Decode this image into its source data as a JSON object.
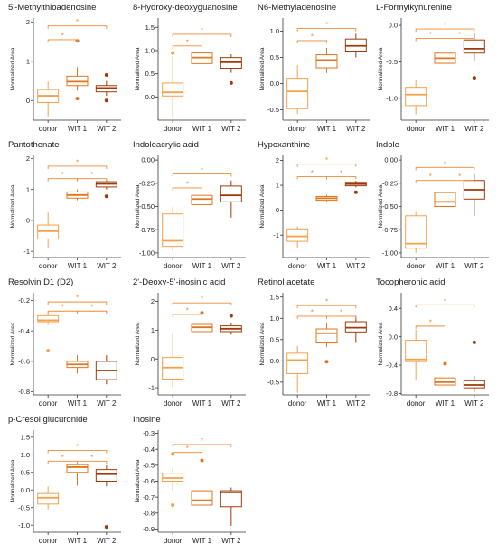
{
  "colors": {
    "donor": "#f5a04a",
    "wit1": "#e0751f",
    "wit2": "#9e3a0a",
    "sig": "#f08a30"
  },
  "chart_data": [
    {
      "type": "box",
      "title": "5'-Methylthioadenosine",
      "ylabel": "Normalized Area",
      "ylim": [
        -0.5,
        2.1
      ],
      "yticks": [
        0,
        1,
        2
      ],
      "categories": [
        "donor",
        "WIT 1",
        "WIT 2"
      ],
      "boxes": [
        {
          "min": -0.42,
          "q1": -0.05,
          "median": 0.12,
          "q3": 0.28,
          "max": 0.48,
          "outliers": []
        },
        {
          "min": 0.25,
          "q1": 0.38,
          "median": 0.48,
          "q3": 0.62,
          "max": 0.85,
          "outliers": [
            1.52,
            0.05
          ]
        },
        {
          "min": 0.12,
          "q1": 0.22,
          "median": 0.32,
          "q3": 0.38,
          "max": 0.5,
          "outliers": [
            0.65,
            0.0
          ]
        }
      ],
      "significance": [
        {
          "from": 0,
          "to": 1,
          "label": "*",
          "y": 1.55
        },
        {
          "from": 0,
          "to": 2,
          "label": "*",
          "y": 1.9
        }
      ]
    },
    {
      "type": "box",
      "title": "8-Hydroxy-deoxyguanosine",
      "ylabel": "Normalized Area",
      "ylim": [
        -0.5,
        1.7
      ],
      "yticks": [
        0,
        0.5,
        1,
        1.5
      ],
      "tick_labels": [
        "0.0",
        "0.5",
        "1.0",
        "1.5"
      ],
      "categories": [
        "donor",
        "WIT 1",
        "WIT 2"
      ],
      "boxes": [
        {
          "min": -0.45,
          "q1": 0.02,
          "median": 0.1,
          "q3": 0.3,
          "max": 0.95,
          "outliers": [
            0.95
          ]
        },
        {
          "min": 0.5,
          "q1": 0.72,
          "median": 0.85,
          "q3": 0.95,
          "max": 1.02,
          "outliers": []
        },
        {
          "min": 0.52,
          "q1": 0.62,
          "median": 0.75,
          "q3": 0.85,
          "max": 0.92,
          "outliers": [
            0.3
          ]
        }
      ],
      "significance": [
        {
          "from": 0,
          "to": 1,
          "label": "*",
          "y": 1.1
        },
        {
          "from": 0,
          "to": 2,
          "label": "*",
          "y": 1.35
        }
      ]
    },
    {
      "type": "box",
      "title": "N6-Methyladenosine",
      "ylabel": "Normalized Area",
      "ylim": [
        -0.7,
        1.25
      ],
      "yticks": [
        -0.5,
        0,
        0.5,
        1
      ],
      "tick_labels": [
        "-0.5",
        "0.0",
        "0.5",
        "1.0"
      ],
      "categories": [
        "donor",
        "WIT 1",
        "WIT 2"
      ],
      "boxes": [
        {
          "min": -0.58,
          "q1": -0.48,
          "median": -0.15,
          "q3": 0.1,
          "max": 0.35,
          "outliers": []
        },
        {
          "min": 0.2,
          "q1": 0.3,
          "median": 0.45,
          "q3": 0.55,
          "max": 0.68,
          "outliers": []
        },
        {
          "min": 0.5,
          "q1": 0.62,
          "median": 0.72,
          "q3": 0.85,
          "max": 0.95,
          "outliers": []
        }
      ],
      "significance": [
        {
          "from": 0,
          "to": 1,
          "label": "*",
          "y": 0.82
        },
        {
          "from": 0,
          "to": 2,
          "label": "*",
          "y": 1.05
        }
      ]
    },
    {
      "type": "box",
      "title": "L-Formylkynurenine",
      "ylabel": "Normalized Area",
      "ylim": [
        -1.3,
        0.1
      ],
      "yticks": [
        -1,
        -0.5,
        0
      ],
      "tick_labels": [
        "-1.0",
        "-0.5",
        "0.0"
      ],
      "categories": [
        "donor",
        "WIT 1",
        "WIT 2"
      ],
      "boxes": [
        {
          "min": -1.22,
          "q1": -1.1,
          "median": -0.95,
          "q3": -0.85,
          "max": -0.75,
          "outliers": []
        },
        {
          "min": -0.58,
          "q1": -0.52,
          "median": -0.45,
          "q3": -0.38,
          "max": -0.32,
          "outliers": []
        },
        {
          "min": -0.48,
          "q1": -0.38,
          "median": -0.32,
          "q3": -0.2,
          "max": -0.1,
          "outliers": [
            -0.72
          ]
        }
      ],
      "significance": [
        {
          "from": 0,
          "to": 1,
          "label": "*",
          "y": -0.18
        },
        {
          "from": 0,
          "to": 2,
          "label": "*",
          "y": -0.05
        },
        {
          "from": 1,
          "to": 2,
          "label": "*",
          "y": -0.18
        }
      ]
    },
    {
      "type": "box",
      "title": "Pantothenate",
      "ylabel": "Normalized Area",
      "ylim": [
        -1.2,
        2.1
      ],
      "yticks": [
        -1,
        0,
        1,
        2
      ],
      "categories": [
        "donor",
        "WIT 1",
        "WIT 2"
      ],
      "boxes": [
        {
          "min": -0.9,
          "q1": -0.6,
          "median": -0.35,
          "q3": -0.15,
          "max": 0.25,
          "outliers": []
        },
        {
          "min": 0.65,
          "q1": 0.72,
          "median": 0.82,
          "q3": 0.92,
          "max": 1.0,
          "outliers": []
        },
        {
          "min": 1.0,
          "q1": 1.08,
          "median": 1.18,
          "q3": 1.25,
          "max": 1.3,
          "outliers": [
            0.78
          ]
        }
      ],
      "significance": [
        {
          "from": 0,
          "to": 1,
          "label": "*",
          "y": 1.35
        },
        {
          "from": 0,
          "to": 2,
          "label": "*",
          "y": 1.75
        },
        {
          "from": 1,
          "to": 2,
          "label": "*",
          "y": 1.35
        }
      ]
    },
    {
      "type": "box",
      "title": "Indoleacrylic acid",
      "ylabel": "Normalized Area",
      "ylim": [
        -1.05,
        0.05
      ],
      "yticks": [
        -1,
        -0.75,
        -0.5,
        -0.25,
        0
      ],
      "tick_labels": [
        "-1.00",
        "-0.75",
        "-0.50",
        "-0.25",
        "0.00"
      ],
      "categories": [
        "donor",
        "WIT 1",
        "WIT 2"
      ],
      "boxes": [
        {
          "min": -0.98,
          "q1": -0.93,
          "median": -0.87,
          "q3": -0.58,
          "max": -0.5,
          "outliers": []
        },
        {
          "min": -0.55,
          "q1": -0.48,
          "median": -0.42,
          "q3": -0.38,
          "max": -0.3,
          "outliers": []
        },
        {
          "min": -0.62,
          "q1": -0.45,
          "median": -0.38,
          "q3": -0.28,
          "max": -0.22,
          "outliers": []
        }
      ],
      "significance": [
        {
          "from": 0,
          "to": 1,
          "label": "*",
          "y": -0.3
        },
        {
          "from": 0,
          "to": 2,
          "label": "*",
          "y": -0.15
        }
      ]
    },
    {
      "type": "box",
      "title": "Hypoxanthine",
      "ylabel": "Normalized Area",
      "ylim": [
        -1.9,
        2.2
      ],
      "yticks": [
        -1,
        0,
        1,
        2
      ],
      "categories": [
        "donor",
        "WIT 1",
        "WIT 2"
      ],
      "boxes": [
        {
          "min": -1.5,
          "q1": -1.25,
          "median": -1.05,
          "q3": -0.75,
          "max": -0.65,
          "outliers": []
        },
        {
          "min": 0.35,
          "q1": 0.4,
          "median": 0.48,
          "q3": 0.55,
          "max": 0.62,
          "outliers": []
        },
        {
          "min": 0.92,
          "q1": 0.98,
          "median": 1.05,
          "q3": 1.12,
          "max": 1.18,
          "outliers": [
            0.72
          ]
        }
      ],
      "significance": [
        {
          "from": 0,
          "to": 1,
          "label": "*",
          "y": 1.35
        },
        {
          "from": 0,
          "to": 2,
          "label": "*",
          "y": 1.85
        },
        {
          "from": 1,
          "to": 2,
          "label": "*",
          "y": 1.35
        }
      ]
    },
    {
      "type": "box",
      "title": "Indole",
      "ylabel": "Normalized Area",
      "ylim": [
        -1.05,
        0.05
      ],
      "yticks": [
        -1,
        -0.75,
        -0.5,
        -0.25,
        0
      ],
      "tick_labels": [
        "-1.00",
        "-0.75",
        "-0.50",
        "-0.25",
        "0.00"
      ],
      "categories": [
        "donor",
        "WIT 1",
        "WIT 2"
      ],
      "boxes": [
        {
          "min": -1.0,
          "q1": -0.95,
          "median": -0.9,
          "q3": -0.6,
          "max": -0.56,
          "outliers": []
        },
        {
          "min": -0.62,
          "q1": -0.5,
          "median": -0.45,
          "q3": -0.35,
          "max": -0.3,
          "outliers": []
        },
        {
          "min": -0.6,
          "q1": -0.42,
          "median": -0.32,
          "q3": -0.22,
          "max": -0.15,
          "outliers": []
        }
      ],
      "significance": [
        {
          "from": 0,
          "to": 1,
          "label": "*",
          "y": -0.22
        },
        {
          "from": 0,
          "to": 2,
          "label": "*",
          "y": -0.08
        },
        {
          "from": 1,
          "to": 2,
          "label": "*",
          "y": -0.22
        }
      ]
    },
    {
      "type": "box",
      "title": "Resolvin D1 (D2)",
      "ylabel": "Normalized Area",
      "ylim": [
        -0.82,
        -0.15
      ],
      "yticks": [
        -0.8,
        -0.6,
        -0.4,
        -0.2
      ],
      "tick_labels": [
        "-0.8",
        "-0.6",
        "-0.4",
        "-0.2"
      ],
      "categories": [
        "donor",
        "WIT 1",
        "WIT 2"
      ],
      "boxes": [
        {
          "min": -0.36,
          "q1": -0.34,
          "median": -0.33,
          "q3": -0.3,
          "max": -0.28,
          "outliers": [
            -0.53
          ]
        },
        {
          "min": -0.68,
          "q1": -0.64,
          "median": -0.62,
          "q3": -0.6,
          "max": -0.56,
          "outliers": []
        },
        {
          "min": -0.75,
          "q1": -0.72,
          "median": -0.66,
          "q3": -0.6,
          "max": -0.56,
          "outliers": []
        }
      ],
      "significance": [
        {
          "from": 0,
          "to": 1,
          "label": "*",
          "y": -0.27
        },
        {
          "from": 0,
          "to": 2,
          "label": "*",
          "y": -0.21
        },
        {
          "from": 1,
          "to": 2,
          "label": "*",
          "y": -0.27
        }
      ]
    },
    {
      "type": "box",
      "title": "2'-Deoxy-5'-inosinic acid",
      "ylabel": "Normalized Area",
      "ylim": [
        -1.25,
        2.3
      ],
      "yticks": [
        -1,
        0,
        1,
        2
      ],
      "categories": [
        "donor",
        "WIT 1",
        "WIT 2"
      ],
      "boxes": [
        {
          "min": -1.0,
          "q1": -0.7,
          "median": -0.3,
          "q3": 0.05,
          "max": 0.9,
          "outliers": []
        },
        {
          "min": 0.85,
          "q1": 0.95,
          "median": 1.1,
          "q3": 1.2,
          "max": 1.35,
          "outliers": [
            1.6
          ]
        },
        {
          "min": 0.85,
          "q1": 0.95,
          "median": 1.05,
          "q3": 1.15,
          "max": 1.25,
          "outliers": [
            1.5
          ]
        }
      ],
      "significance": [
        {
          "from": 0,
          "to": 1,
          "label": "*",
          "y": 1.55
        },
        {
          "from": 0,
          "to": 2,
          "label": "*",
          "y": 1.95
        }
      ]
    },
    {
      "type": "box",
      "title": "Retinol acetate",
      "ylabel": "Normalized Area",
      "ylim": [
        -0.8,
        1.6
      ],
      "yticks": [
        -0.5,
        0,
        0.5,
        1,
        1.5
      ],
      "tick_labels": [
        "-0.5",
        "0.0",
        "0.5",
        "1.0",
        "1.5"
      ],
      "categories": [
        "donor",
        "WIT 1",
        "WIT 2"
      ],
      "boxes": [
        {
          "min": -0.75,
          "q1": -0.3,
          "median": 0.02,
          "q3": 0.18,
          "max": 0.35,
          "outliers": []
        },
        {
          "min": 0.32,
          "q1": 0.42,
          "median": 0.65,
          "q3": 0.75,
          "max": 0.88,
          "outliers": [
            -0.02
          ]
        },
        {
          "min": 0.42,
          "q1": 0.68,
          "median": 0.78,
          "q3": 0.92,
          "max": 1.05,
          "outliers": []
        }
      ],
      "significance": [
        {
          "from": 0,
          "to": 1,
          "label": "*",
          "y": 1.05
        },
        {
          "from": 0,
          "to": 2,
          "label": "*",
          "y": 1.3
        },
        {
          "from": 1,
          "to": 2,
          "label": "*",
          "y": 1.05
        }
      ]
    },
    {
      "type": "box",
      "title": "Tocopheronic acid",
      "ylabel": "Normalized Area",
      "ylim": [
        -0.82,
        0.62
      ],
      "yticks": [
        -0.8,
        -0.4,
        0,
        0.4
      ],
      "tick_labels": [
        "-0.8",
        "-0.4",
        "0.0",
        "0.4"
      ],
      "categories": [
        "donor",
        "WIT 1",
        "WIT 2"
      ],
      "boxes": [
        {
          "min": -0.6,
          "q1": -0.35,
          "median": -0.32,
          "q3": -0.05,
          "max": 0.1,
          "outliers": []
        },
        {
          "min": -0.72,
          "q1": -0.68,
          "median": -0.64,
          "q3": -0.58,
          "max": -0.5,
          "outliers": [
            -0.38
          ]
        },
        {
          "min": -0.78,
          "q1": -0.72,
          "median": -0.68,
          "q3": -0.62,
          "max": -0.55,
          "outliers": [
            -0.08
          ]
        }
      ],
      "significance": [
        {
          "from": 0,
          "to": 1,
          "label": "*",
          "y": 0.15
        },
        {
          "from": 0,
          "to": 2,
          "label": "*",
          "y": 0.45
        }
      ]
    },
    {
      "type": "box",
      "title": "p-Cresol glucuronide",
      "ylabel": "Normalized Area",
      "ylim": [
        -1.2,
        1.7
      ],
      "yticks": [
        -1,
        -0.5,
        0,
        0.5,
        1,
        1.5
      ],
      "tick_labels": [
        "-1.0",
        "-0.5",
        "0.0",
        "0.5",
        "1.0",
        "1.5"
      ],
      "categories": [
        "donor",
        "WIT 1",
        "WIT 2"
      ],
      "boxes": [
        {
          "min": -0.55,
          "q1": -0.4,
          "median": -0.22,
          "q3": -0.1,
          "max": 0.1,
          "outliers": []
        },
        {
          "min": 0.12,
          "q1": 0.5,
          "median": 0.65,
          "q3": 0.72,
          "max": 0.78,
          "outliers": []
        },
        {
          "min": 0.1,
          "q1": 0.25,
          "median": 0.45,
          "q3": 0.58,
          "max": 0.7,
          "outliers": [
            -1.05
          ]
        }
      ],
      "significance": [
        {
          "from": 0,
          "to": 1,
          "label": "*",
          "y": 0.82
        },
        {
          "from": 0,
          "to": 2,
          "label": "*",
          "y": 1.12
        },
        {
          "from": 1,
          "to": 2,
          "label": "*",
          "y": 0.82
        }
      ]
    },
    {
      "type": "box",
      "title": "Inosine",
      "ylabel": "Normalized Area",
      "ylim": [
        -0.92,
        -0.28
      ],
      "yticks": [
        -0.9,
        -0.8,
        -0.7,
        -0.6,
        -0.5,
        -0.4,
        -0.3
      ],
      "tick_labels": [
        "-0.9",
        "-0.8",
        "-0.7",
        "-0.6",
        "-0.5",
        "-0.4",
        "-0.3"
      ],
      "categories": [
        "donor",
        "WIT 1",
        "WIT 2"
      ],
      "boxes": [
        {
          "min": -0.66,
          "q1": -0.6,
          "median": -0.58,
          "q3": -0.55,
          "max": -0.52,
          "outliers": [
            -0.43,
            -0.75
          ]
        },
        {
          "min": -0.77,
          "q1": -0.75,
          "median": -0.72,
          "q3": -0.66,
          "max": -0.62,
          "outliers": [
            -0.47
          ]
        },
        {
          "min": -0.88,
          "q1": -0.76,
          "median": -0.67,
          "q3": -0.66,
          "max": -0.64,
          "outliers": []
        }
      ],
      "significance": [
        {
          "from": 0,
          "to": 1,
          "label": "*",
          "y": -0.42
        },
        {
          "from": 0,
          "to": 2,
          "label": "*",
          "y": -0.37
        }
      ]
    }
  ]
}
